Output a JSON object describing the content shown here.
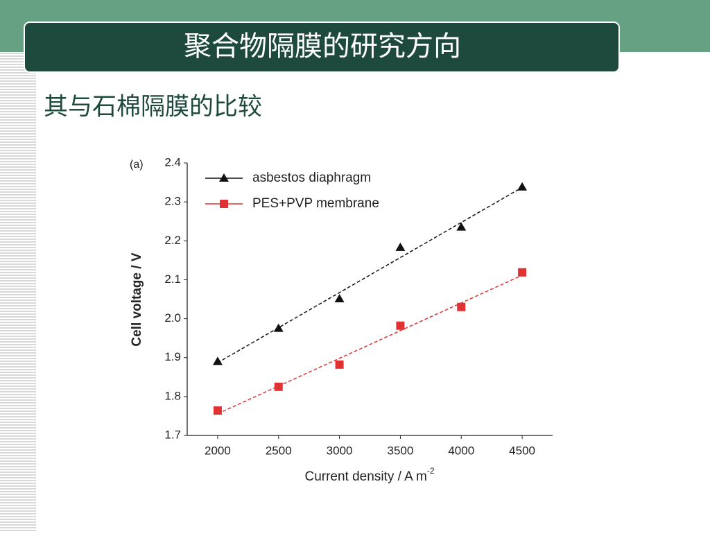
{
  "slide": {
    "title": "聚合物隔膜的研究方向",
    "subtitle": "其与石棉隔膜的比较"
  },
  "chart_data": {
    "type": "scatter",
    "annotation": "(a)",
    "x_label": "Current density  / A m",
    "x_label_sup": "-2",
    "y_label": "Cell voltage  / V",
    "x": [
      2000,
      2500,
      3000,
      3500,
      4000,
      4500
    ],
    "series": [
      {
        "name": "asbestos diaphragm",
        "color": "#111111",
        "marker": "triangle",
        "values": [
          1.89,
          1.975,
          2.051,
          2.183,
          2.235,
          2.338
        ]
      },
      {
        "name": "PES+PVP membrane",
        "color": "#e03232",
        "marker": "square",
        "values": [
          1.764,
          1.825,
          1.882,
          1.982,
          2.03,
          2.119
        ]
      }
    ],
    "fit_line": "dashed",
    "xlim": [
      1750,
      4750
    ],
    "xticks": [
      2000,
      2500,
      3000,
      3500,
      4000,
      4500
    ],
    "ylim": [
      1.7,
      2.4
    ],
    "yticks": [
      1.7,
      1.8,
      1.9,
      {
        "value": 2,
        "label": "2.0"
      },
      2.1,
      2.2,
      2.3,
      2.4
    ],
    "legend": "upper left",
    "grid": false
  }
}
